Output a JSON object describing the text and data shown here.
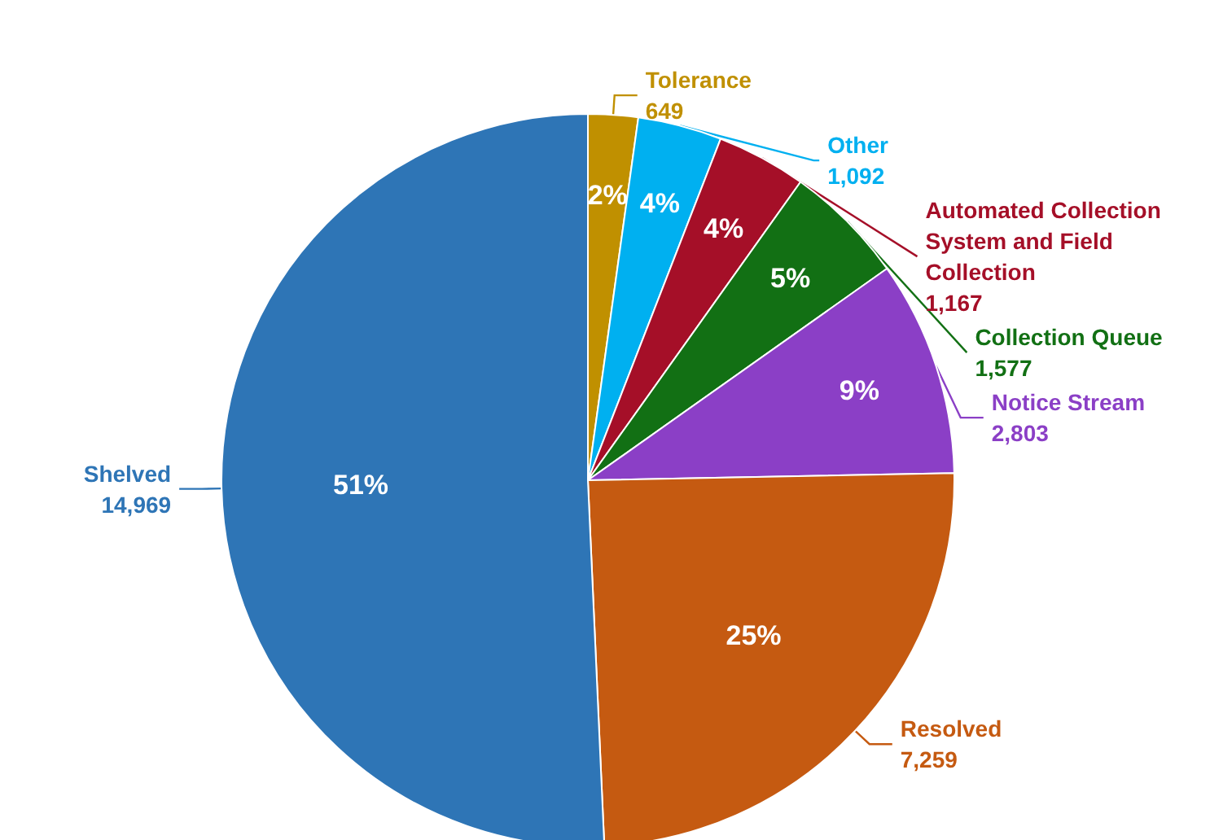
{
  "chart_data": {
    "type": "pie",
    "categories": [
      "Tolerance",
      "Other",
      "Automated Collection System and Field Collection",
      "Collection Queue",
      "Notice Stream",
      "Resolved",
      "Shelved"
    ],
    "values": [
      649,
      1092,
      1167,
      1577,
      2803,
      7259,
      14969
    ],
    "colors": [
      "#c09000",
      "#00b0f0",
      "#a50f28",
      "#127014",
      "#8b3fc6",
      "#c55a11",
      "#2e75b6"
    ],
    "annotations": [
      "2%",
      "4%",
      "4%",
      "5%",
      "9%",
      "25%",
      "51%"
    ],
    "value_labels": [
      "649",
      "1,092",
      "1,167",
      "1,577",
      "2,803",
      "7,259",
      "14,969"
    ],
    "legend": false
  }
}
